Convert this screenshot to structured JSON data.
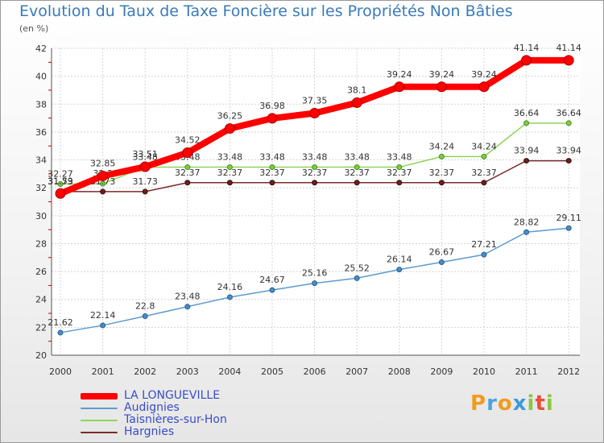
{
  "title": "Evolution du Taux de Taxe Foncière sur les Propriétés Non Bâties",
  "subtitle": "(en %)",
  "logo": {
    "letters": [
      "P",
      "r",
      "o",
      "x",
      "i",
      "t",
      "i"
    ],
    "colors": [
      "#f29c1f",
      "#4aa3df",
      "#f29c1f",
      "#3a9bd9",
      "#8cc63f",
      "#e94e3d",
      "#8cc63f"
    ]
  },
  "chart_data": {
    "type": "line",
    "title": "Evolution du Taux de Taxe Foncière sur les Propriétés Non Bâties",
    "ylabel": "(en %)",
    "xlabel": "",
    "ylim": [
      20,
      42
    ],
    "yticks": [
      20,
      22,
      24,
      26,
      28,
      30,
      32,
      34,
      36,
      38,
      40,
      42
    ],
    "grid": true,
    "legend_position": "bottom-left",
    "x": [
      "2000",
      "2001",
      "2002",
      "2003",
      "2004",
      "2005",
      "2006",
      "2007",
      "2008",
      "2009",
      "2010",
      "2011",
      "2012"
    ],
    "series": [
      {
        "name": "Audignies",
        "color": "#5b9bd0",
        "values": [
          21.62,
          22.14,
          22.8,
          23.48,
          24.16,
          24.67,
          25.16,
          25.52,
          26.14,
          26.67,
          27.21,
          28.82,
          29.11
        ],
        "labels": [
          "21.62",
          "22.14",
          "22.8",
          "23.48",
          "24.16",
          "24.67",
          "25.16",
          "25.52",
          "26.14",
          "26.67",
          "27.21",
          "28.82",
          "29.11"
        ]
      },
      {
        "name": "Taisnières-sur-Hon",
        "color": "#8fd45a",
        "values": [
          32.27,
          32.3,
          33.48,
          33.48,
          33.48,
          33.48,
          33.48,
          33.48,
          33.48,
          34.24,
          34.24,
          36.64,
          36.64
        ],
        "labels": [
          "32.27",
          "32.3",
          "33.48",
          "33.48",
          "33.48",
          "33.48",
          "33.48",
          "33.48",
          "33.48",
          "34.24",
          "34.24",
          "36.64",
          "36.64"
        ]
      },
      {
        "name": "Hargnies",
        "color": "#7a2a2a",
        "values": [
          31.73,
          31.73,
          31.73,
          32.37,
          32.37,
          32.37,
          32.37,
          32.37,
          32.37,
          32.37,
          32.37,
          33.94,
          33.94
        ],
        "labels": [
          "31.73",
          "31.73",
          "31.73",
          "32.37",
          "32.37",
          "32.37",
          "32.37",
          "32.37",
          "32.37",
          "32.37",
          "32.37",
          "33.94",
          "33.94"
        ]
      },
      {
        "name": "LA LONGUEVILLE",
        "color": "#ff0000",
        "values": [
          31.59,
          32.85,
          33.51,
          34.52,
          36.25,
          36.98,
          37.35,
          38.1,
          39.24,
          39.24,
          39.24,
          41.14,
          41.14
        ],
        "labels": [
          "31.59",
          "32.85",
          "33.51",
          "34.52",
          "36.25",
          "36.98",
          "37.35",
          "38.1",
          "39.24",
          "39.24",
          "39.24",
          "41.14",
          "41.14"
        ]
      }
    ]
  }
}
